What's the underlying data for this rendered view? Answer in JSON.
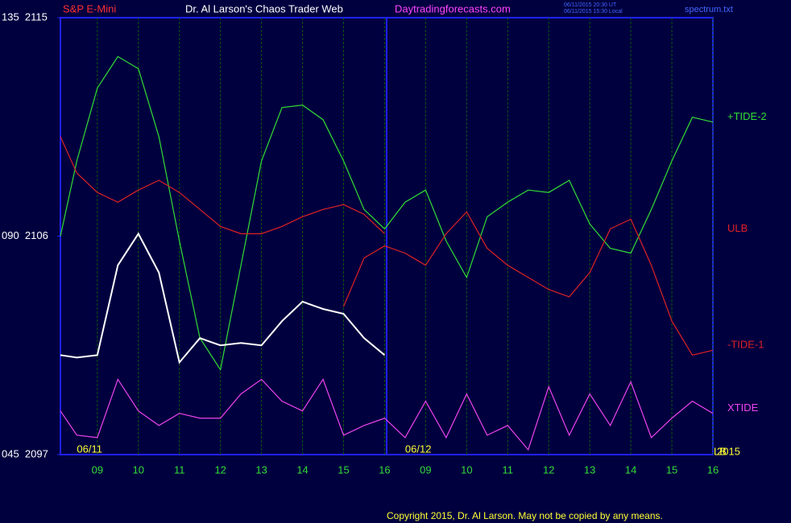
{
  "chart_data": {
    "type": "line",
    "title": "Dr. Al Larson's Chaos Trader Web",
    "instrument": "S&P E-Mini",
    "site": "Daytradingforecasts.com",
    "timestamps": [
      "06/11/2015 20:30 UT",
      "06/11/2015 15:30 Local"
    ],
    "file": "spectrum.txt",
    "copyright": "Copyright 2015, Dr. Al Larson. May not be copied by any means.",
    "year": "2015",
    "corner_label": "LB",
    "day_labels": [
      {
        "x": 0.5,
        "label": "06/11"
      },
      {
        "x": 8.5,
        "label": "06/12"
      }
    ],
    "x": [
      0.1,
      0.5,
      1,
      1.5,
      2,
      2.5,
      3,
      3.5,
      4,
      4.5,
      5,
      5.5,
      6,
      6.5,
      7,
      7.5,
      8,
      8.5,
      9,
      9.5,
      10,
      10.5,
      11,
      11.5,
      12,
      12.5,
      13,
      13.5,
      14,
      14.5,
      15,
      15.5,
      16
    ],
    "xlim": [
      0.1,
      16
    ],
    "xticks": [
      {
        "value": 1,
        "label": "09"
      },
      {
        "value": 2,
        "label": "10"
      },
      {
        "value": 3,
        "label": "11"
      },
      {
        "value": 4,
        "label": "12"
      },
      {
        "value": 5,
        "label": "13"
      },
      {
        "value": 6,
        "label": "14"
      },
      {
        "value": 7,
        "label": "15"
      },
      {
        "value": 8,
        "label": "16"
      },
      {
        "value": 9,
        "label": "09"
      },
      {
        "value": 10,
        "label": "10"
      },
      {
        "value": 11,
        "label": "11"
      },
      {
        "value": 12,
        "label": "12"
      },
      {
        "value": 13,
        "label": "13"
      },
      {
        "value": 14,
        "label": "14"
      },
      {
        "value": 15,
        "label": "15"
      },
      {
        "value": 16,
        "label": "16"
      }
    ],
    "ylim": [
      2097,
      2115
    ],
    "yticks": [
      {
        "value": 2115,
        "label": "135  2115"
      },
      {
        "value": 2106,
        "label": "090  2106"
      },
      {
        "value": 2097,
        "label": "045  2097"
      }
    ],
    "grid": true,
    "series": [
      {
        "name": "+TIDE-2",
        "color": "#33dd33",
        "values": [
          2106.0,
          2109.1,
          2112.1,
          2113.4,
          2112.9,
          2110.1,
          2105.8,
          2101.8,
          2100.5,
          2104.8,
          2109.1,
          2111.3,
          2111.4,
          2110.8,
          2109.1,
          2107.1,
          2106.3,
          2107.4,
          2107.9,
          2105.8,
          2104.3,
          2106.8,
          2107.4,
          2107.9,
          2107.8,
          2108.3,
          2106.5,
          2105.5,
          2105.3,
          2107.1,
          2109.1,
          2110.9,
          2110.7
        ]
      },
      {
        "name": "ULB",
        "color": "#dd2222",
        "values": [
          2110.1,
          2108.6,
          2107.8,
          2107.4,
          2107.9,
          2108.3,
          2107.8,
          2107.1,
          2106.4,
          2106.1,
          2106.1,
          2106.4,
          2106.8,
          2107.1,
          2107.3,
          2106.9,
          2106.1,
          null,
          null,
          null,
          null,
          null,
          null,
          null,
          null,
          null,
          null,
          null,
          null,
          null,
          null,
          null,
          null
        ]
      },
      {
        "name": "-TIDE-1",
        "color": "#dd2222",
        "values": [
          null,
          null,
          null,
          null,
          null,
          null,
          null,
          null,
          null,
          null,
          null,
          null,
          null,
          null,
          2103.1,
          2105.1,
          2105.6,
          2105.3,
          2104.8,
          2106.1,
          2107.0,
          2105.5,
          2104.8,
          2104.3,
          2103.8,
          2103.5,
          2104.5,
          2106.3,
          2106.7,
          2104.8,
          2102.5,
          2101.1,
          2101.3
        ]
      },
      {
        "name": "XTIDE",
        "color": "#ee44ee",
        "values": [
          2098.8,
          2097.8,
          2097.7,
          2100.1,
          2098.8,
          2098.2,
          2098.7,
          2098.5,
          2098.5,
          2099.5,
          2100.1,
          2099.2,
          2098.8,
          2100.1,
          2097.8,
          2098.2,
          2098.5,
          2097.7,
          2099.2,
          2097.7,
          2099.5,
          2097.8,
          2098.2,
          2097.2,
          2099.8,
          2097.8,
          2099.5,
          2098.2,
          2100.0,
          2097.7,
          2098.5,
          2099.2,
          2098.7
        ]
      },
      {
        "color": "#ffffff",
        "values": [
          2101.1,
          2101.0,
          2101.1,
          2104.8,
          2106.1,
          2104.5,
          2100.8,
          2101.8,
          2101.5,
          2101.6,
          2101.5,
          2102.5,
          2103.3,
          2103.0,
          2102.8,
          2101.8,
          2101.1,
          null,
          null,
          null,
          null,
          null,
          null,
          null,
          null,
          null,
          null,
          null,
          null,
          null,
          null,
          null,
          null
        ]
      }
    ]
  }
}
